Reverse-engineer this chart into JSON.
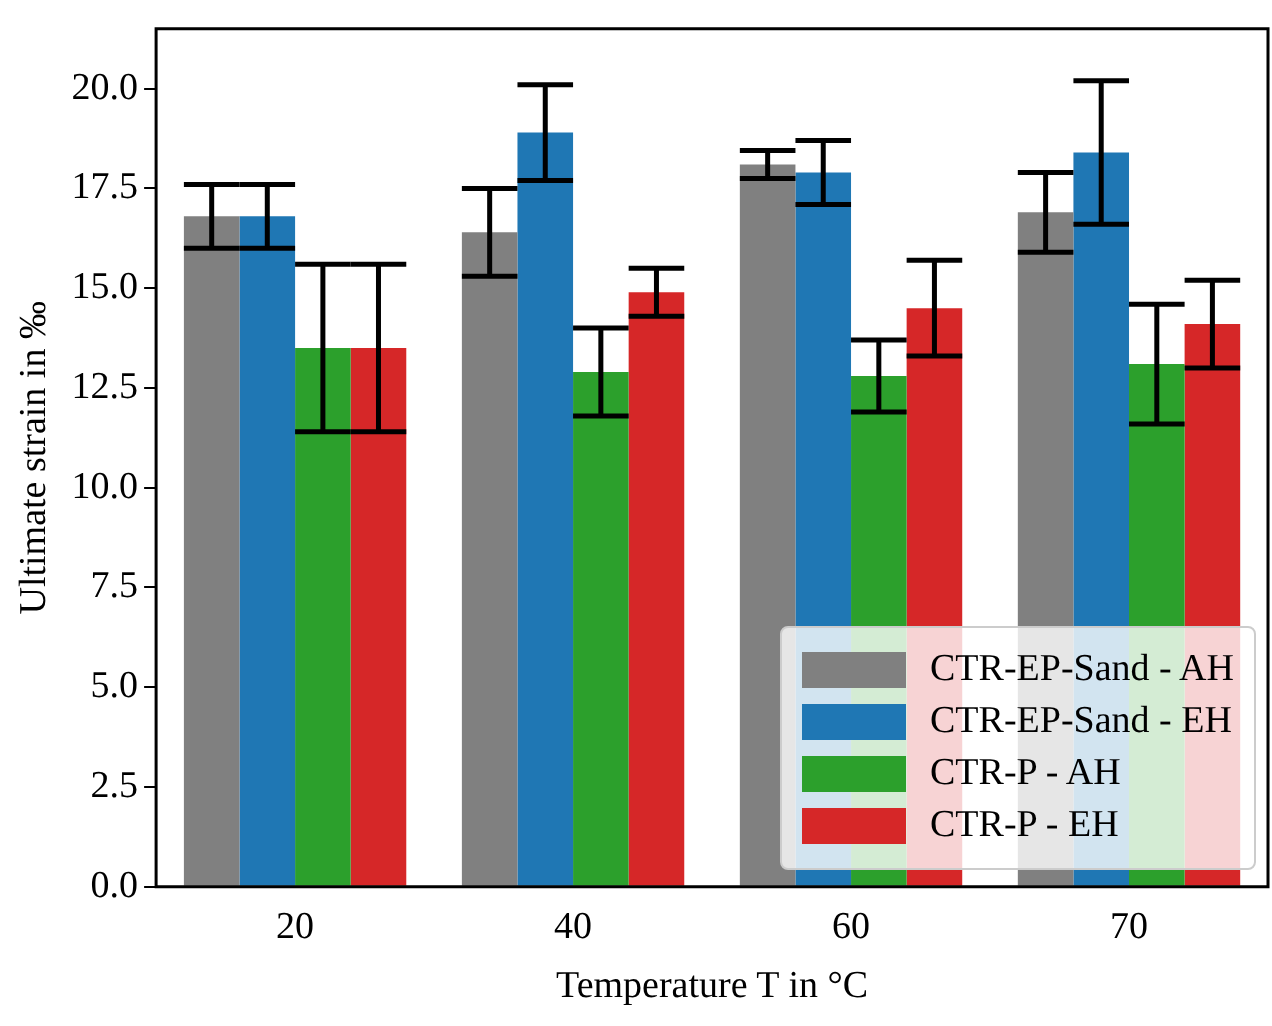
{
  "chart_data": {
    "type": "bar",
    "xlabel": "Temperature T in °C",
    "ylabel": "Ultimate strain in ‰",
    "categories": [
      "20",
      "40",
      "60",
      "70"
    ],
    "series": [
      {
        "name": "CTR-EP-Sand - AH",
        "color": "#808080",
        "values": [
          16.8,
          16.4,
          18.1,
          16.9
        ],
        "errors": [
          0.8,
          1.1,
          0.35,
          1.0
        ]
      },
      {
        "name": "CTR-EP-Sand - EH",
        "color": "#1f77b4",
        "values": [
          16.8,
          18.9,
          17.9,
          18.4
        ],
        "errors": [
          0.8,
          1.2,
          0.8,
          1.8
        ]
      },
      {
        "name": "CTR-P - AH",
        "color": "#2ca02c",
        "values": [
          13.5,
          12.9,
          12.8,
          13.1
        ],
        "errors": [
          2.1,
          1.1,
          0.9,
          1.5
        ]
      },
      {
        "name": "CTR-P - EH",
        "color": "#d62728",
        "values": [
          13.5,
          14.9,
          14.5,
          14.1
        ],
        "errors": [
          2.1,
          0.6,
          1.2,
          1.1
        ]
      }
    ],
    "ylim": [
      0,
      21.5
    ],
    "yticks": [
      {
        "value": 0,
        "label": "0.0"
      },
      {
        "value": 2.5,
        "label": "2.5"
      },
      {
        "value": 5,
        "label": "5.0"
      },
      {
        "value": 7.5,
        "label": "7.5"
      },
      {
        "value": 10,
        "label": "10.0"
      },
      {
        "value": 12.5,
        "label": "12.5"
      },
      {
        "value": 15,
        "label": "15.0"
      },
      {
        "value": 17.5,
        "label": "17.5"
      },
      {
        "value": 20,
        "label": "20.0"
      }
    ],
    "grid": false,
    "legend": "bottom right"
  }
}
